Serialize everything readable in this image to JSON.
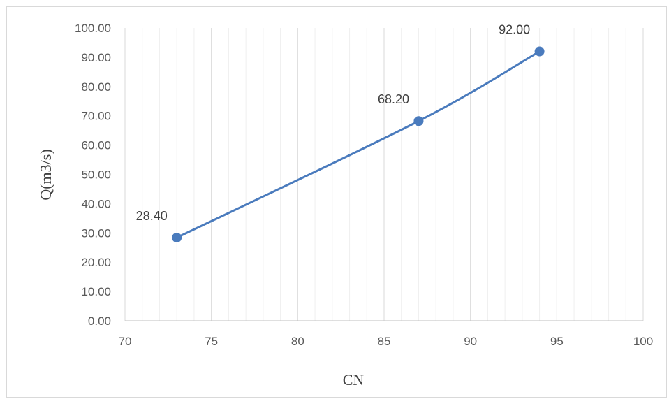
{
  "chart_data": {
    "type": "line",
    "title": "",
    "xlabel": "CN",
    "ylabel": "Q(m3/s)",
    "xlim": [
      70,
      100
    ],
    "ylim": [
      0,
      100
    ],
    "x_ticks": [
      "70",
      "75",
      "80",
      "85",
      "90",
      "95",
      "100"
    ],
    "y_ticks": [
      "0.00",
      "10.00",
      "20.00",
      "30.00",
      "40.00",
      "50.00",
      "60.00",
      "70.00",
      "80.00",
      "90.00",
      "100.00"
    ],
    "grid": "vertical major and minor gridlines",
    "legend": "none",
    "series": [
      {
        "x": [
          73,
          87,
          94
        ],
        "y": [
          28.4,
          68.2,
          92.0
        ],
        "labels": [
          "28.40",
          "68.20",
          "92.00"
        ],
        "color": "#4a7bbd",
        "smooth": true,
        "markers": true
      }
    ]
  }
}
